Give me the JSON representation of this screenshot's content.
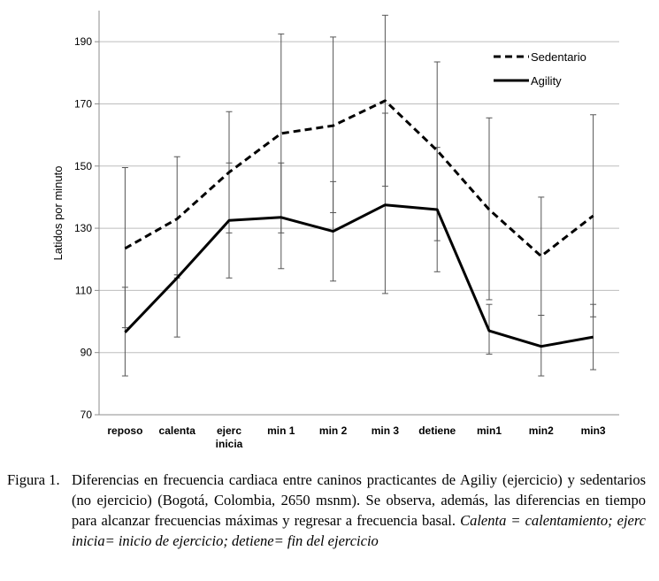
{
  "chart_data": {
    "type": "line",
    "categories": [
      "reposo",
      "calenta",
      "ejerc inicia",
      "min 1",
      "min 2",
      "min 3",
      "detiene",
      "min1",
      "min2",
      "min3"
    ],
    "category_lines": [
      [
        "reposo"
      ],
      [
        "calenta"
      ],
      [
        "ejerc",
        "inicia"
      ],
      [
        "min 1"
      ],
      [
        "min 2"
      ],
      [
        "min 3"
      ],
      [
        "detiene"
      ],
      [
        "min1"
      ],
      [
        "min2"
      ],
      [
        "min3"
      ]
    ],
    "ylabel": "Latidos por minuto",
    "xlabel": "",
    "ylim": [
      70,
      200
    ],
    "yticks": [
      70,
      90,
      110,
      130,
      150,
      170,
      190
    ],
    "legend_position": "top-right",
    "series": [
      {
        "name": "Sedentario",
        "style": "dashed",
        "color": "#000000",
        "values": [
          123.5,
          133,
          148,
          160.5,
          163,
          171,
          155,
          136,
          121,
          134
        ],
        "error_low": [
          98,
          114,
          128.5,
          128.5,
          135,
          143.5,
          126,
          107,
          102,
          101.5
        ],
        "error_high": [
          149.5,
          153,
          151,
          192.5,
          191.5,
          198.5,
          183.5,
          165.5,
          140,
          166.5
        ]
      },
      {
        "name": "Agility",
        "style": "solid",
        "color": "#000000",
        "values": [
          96.5,
          114,
          132.5,
          133.5,
          129,
          137.5,
          136,
          97,
          92,
          95
        ],
        "error_low": [
          82.5,
          95,
          114,
          117,
          113,
          109,
          116,
          89.5,
          82.5,
          84.5
        ],
        "error_high": [
          111,
          115,
          167.5,
          151,
          145,
          167,
          156,
          105.5,
          102,
          105.5
        ]
      }
    ]
  },
  "caption": {
    "number": "Figura 1.",
    "text_regular": "Diferencias en frecuencia cardiaca entre caninos practicantes de Agiliy (ejercicio) y sedentarios (no ejercicio) (Bogotá, Colombia, 2650 msnm). Se observa, además, las diferencias en tiempo para alcanzar frecuencias máximas y regresar a frecuencia basal.",
    "text_italic": "Calenta = calentamiento; ejerc inicia= inicio de ejercicio; detiene= fin del ejercicio"
  }
}
